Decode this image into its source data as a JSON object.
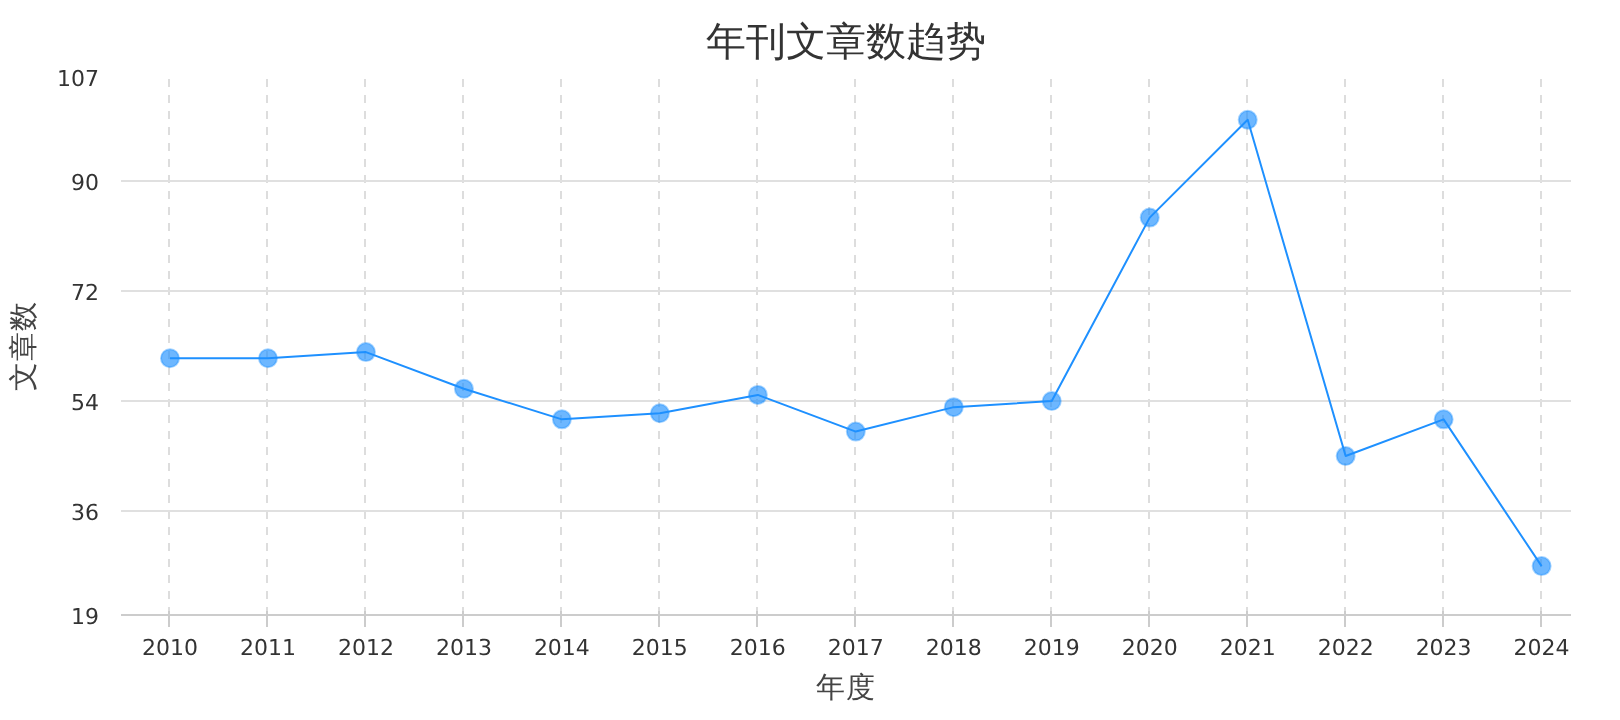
{
  "chart_data": {
    "type": "line",
    "title": "年刊文章数趋势",
    "xlabel": "年度",
    "ylabel": "文章数",
    "x": [
      2010,
      2011,
      2012,
      2013,
      2014,
      2015,
      2016,
      2017,
      2018,
      2019,
      2020,
      2021,
      2022,
      2023,
      2024
    ],
    "series": [
      {
        "color": "#1e90ff",
        "values": [
          61,
          61,
          62,
          56,
          51,
          52,
          55,
          49,
          53,
          54,
          84,
          100,
          45,
          51,
          27
        ]
      }
    ],
    "xlim": [
      2009.5,
      2024.3
    ],
    "xticks": [
      2010,
      2011,
      2012,
      2013,
      2014,
      2015,
      2016,
      2017,
      2018,
      2019,
      2020,
      2021,
      2022,
      2023,
      2024
    ],
    "ylim": [
      19,
      107
    ],
    "yticks": [
      19,
      36,
      54,
      72,
      90,
      107
    ],
    "grid": true,
    "marker": "circle",
    "line_style": "solid"
  }
}
